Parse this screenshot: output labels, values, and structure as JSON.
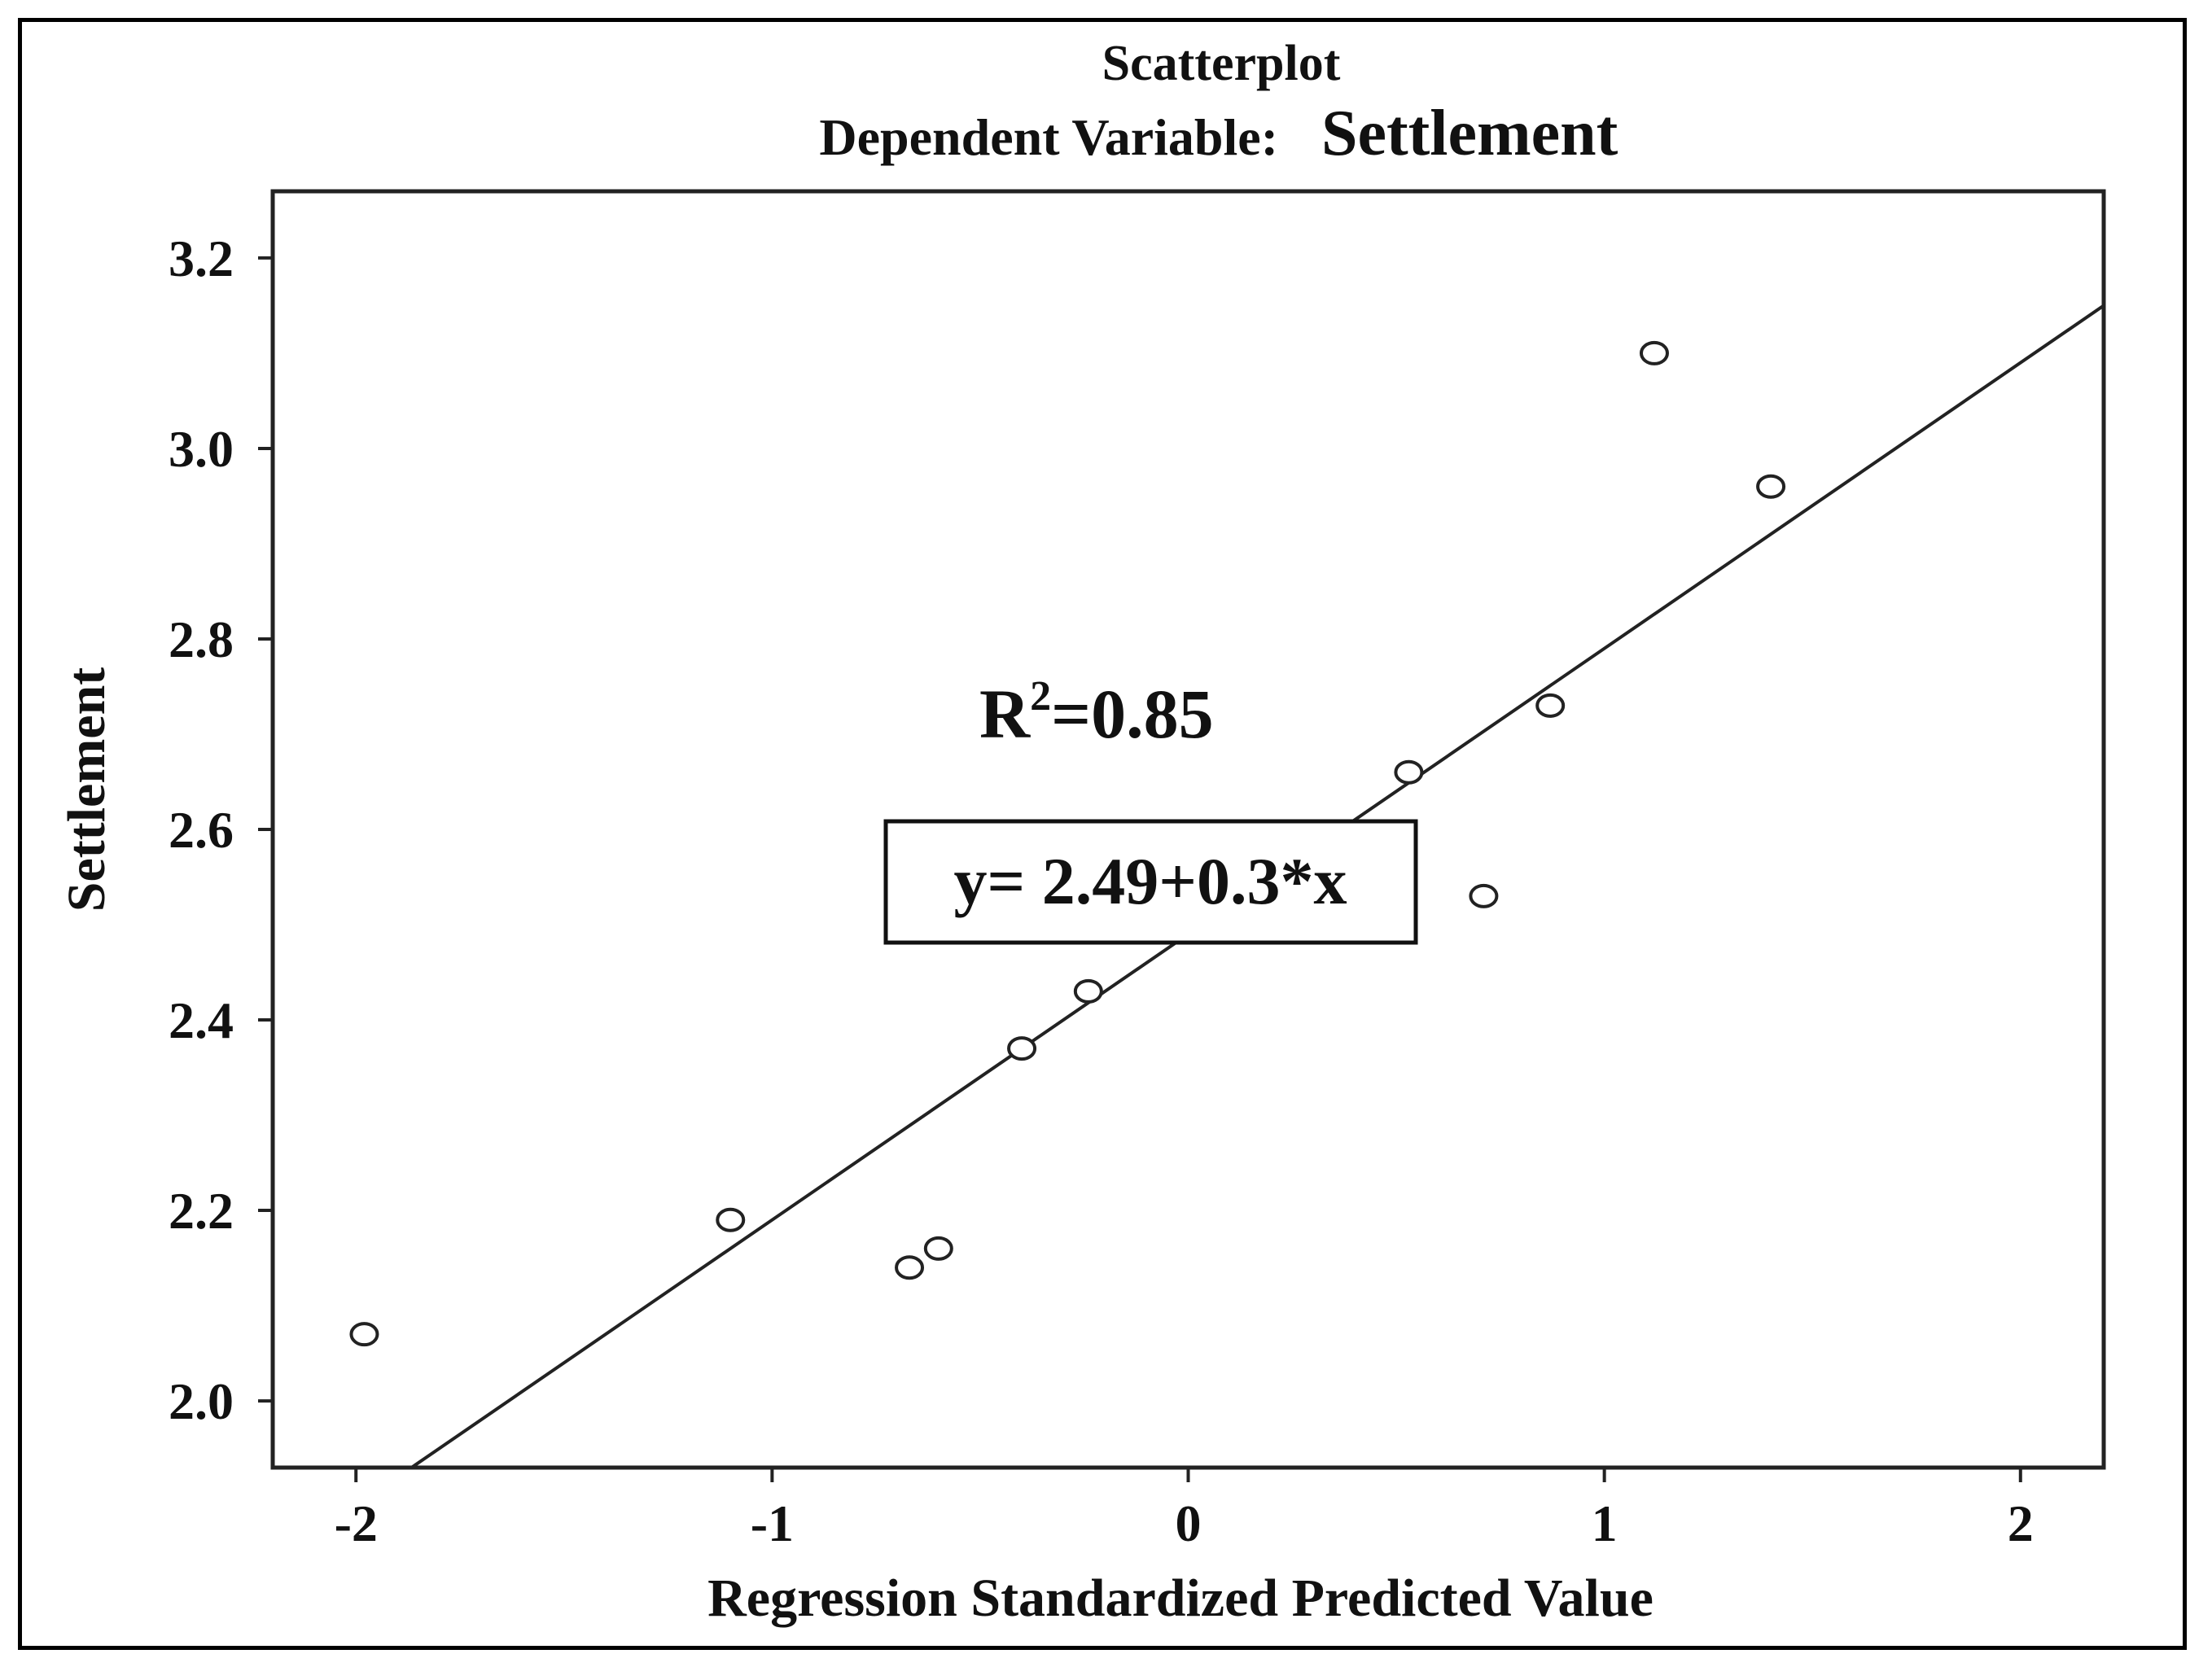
{
  "chart_data": {
    "type": "scatter",
    "title": "Scatterplot",
    "subtitle_prefix": "Dependent Variable:",
    "subtitle_variable": "Settlement",
    "xlabel": "Regression Standardized Predicted Value",
    "ylabel": "Settlement",
    "xlim": [
      -2.2,
      2.2
    ],
    "ylim": [
      1.93,
      3.27
    ],
    "xticks": [
      -2,
      -1,
      0,
      1,
      2
    ],
    "xtick_labels": [
      "-2",
      "-1",
      "0",
      "1",
      "2"
    ],
    "yticks": [
      2.0,
      2.2,
      2.4,
      2.6,
      2.8,
      3.0,
      3.2
    ],
    "ytick_labels": [
      "2.0",
      "2.2",
      "2.4",
      "2.6",
      "2.8",
      "3.0",
      "3.2"
    ],
    "grid": false,
    "series": [
      {
        "name": "Settlement",
        "marker": "open-circle",
        "points": [
          {
            "x": -1.98,
            "y": 2.07
          },
          {
            "x": -1.1,
            "y": 2.19
          },
          {
            "x": -0.67,
            "y": 2.14
          },
          {
            "x": -0.6,
            "y": 2.16
          },
          {
            "x": -0.4,
            "y": 2.37
          },
          {
            "x": -0.24,
            "y": 2.43
          },
          {
            "x": 0.53,
            "y": 2.66
          },
          {
            "x": 0.71,
            "y": 2.53
          },
          {
            "x": 0.87,
            "y": 2.73
          },
          {
            "x": 1.12,
            "y": 3.1
          },
          {
            "x": 1.4,
            "y": 2.96
          }
        ]
      }
    ],
    "regression": {
      "intercept": 2.49,
      "slope": 0.3,
      "equation_label": "y= 2.49+0.3*x",
      "r2_prefix": "R",
      "r2_superscript": "2",
      "r2_suffix": "=0.85"
    }
  }
}
